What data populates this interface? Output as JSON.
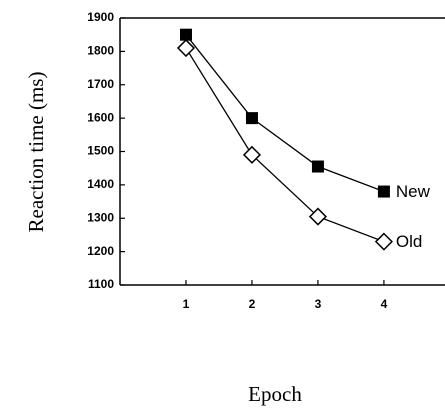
{
  "chart_data": {
    "type": "line",
    "x_label": "Epoch",
    "y_label": "Reaction  time (ms)",
    "x": [
      1,
      2,
      3,
      4
    ],
    "series": [
      {
        "name": "New",
        "color": "#000000",
        "marker": "square",
        "values": [
          1850,
          1600,
          1455,
          1380
        ]
      },
      {
        "name": "Old",
        "color": "#000000",
        "marker": "diamond",
        "values": [
          1810,
          1490,
          1305,
          1230
        ]
      }
    ],
    "xlim": [
      0,
      4.85
    ],
    "xticks": [
      1,
      2,
      3,
      4
    ],
    "ylim": [
      1100,
      1900
    ],
    "yticks": [
      1100,
      1200,
      1300,
      1400,
      1500,
      1600,
      1700,
      1800,
      1900
    ],
    "grid": false
  }
}
